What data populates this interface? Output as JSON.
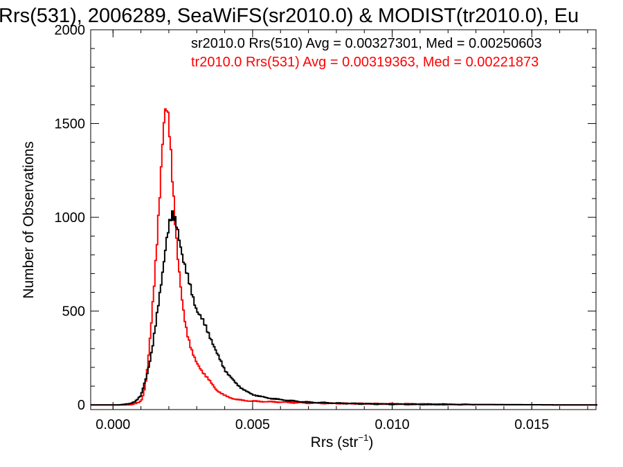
{
  "chart_data": {
    "type": "line",
    "title": "Rrs(531), 2006289, SeaWiFS(sr2010.0) & MODIST(tr2010.0), Eu",
    "xlabel": "Rrs (str",
    "xlabel_sup": "−1",
    "xlabel_close": ")",
    "ylabel": "Number of Observations",
    "xlim": [
      -0.0008,
      0.0173
    ],
    "ylim": [
      -25,
      2000
    ],
    "xticks": [
      0.0,
      0.005,
      0.01,
      0.015
    ],
    "xtick_labels": [
      "0.000",
      "0.005",
      "0.010",
      "0.015"
    ],
    "yticks": [
      0,
      500,
      1000,
      1500,
      2000
    ],
    "ytick_labels": [
      "0",
      "500",
      "1000",
      "1500",
      "2000"
    ],
    "grid": false,
    "legend_position": "top-right",
    "series": [
      {
        "name": "sr2010.0 Rrs(510) Avg = 0.00327301, Med = 0.00250603",
        "color": "#000000",
        "x": [
          0.0002,
          0.0006,
          0.0008,
          0.001,
          0.0011,
          0.0012,
          0.0013,
          0.0014,
          0.0015,
          0.0016,
          0.0017,
          0.0018,
          0.0019,
          0.002,
          0.0021,
          0.0022,
          0.0023,
          0.0024,
          0.0025,
          0.0026,
          0.0027,
          0.0028,
          0.0029,
          0.003,
          0.0031,
          0.0032,
          0.0033,
          0.0034,
          0.0035,
          0.0036,
          0.0037,
          0.0038,
          0.0039,
          0.004,
          0.0042,
          0.0044,
          0.0046,
          0.0048,
          0.005,
          0.0055,
          0.006,
          0.0065,
          0.007,
          0.008,
          0.009,
          0.01,
          0.011,
          0.012,
          0.013,
          0.014,
          0.015,
          0.016,
          0.0172
        ],
        "values": [
          0,
          5,
          20,
          50,
          100,
          150,
          220,
          300,
          400,
          500,
          610,
          740,
          880,
          960,
          1000,
          980,
          950,
          880,
          790,
          720,
          660,
          610,
          560,
          510,
          480,
          450,
          420,
          390,
          360,
          320,
          280,
          250,
          220,
          190,
          150,
          115,
          90,
          70,
          55,
          38,
          28,
          20,
          14,
          9,
          6,
          4,
          3,
          2,
          2,
          1,
          1,
          0,
          0
        ]
      },
      {
        "name": "tr2010.0 Rrs(531) Avg = 0.00319363, Med = 0.00221873",
        "color": "#ff0000",
        "x": [
          0.0002,
          0.0006,
          0.0008,
          0.001,
          0.0011,
          0.0012,
          0.0013,
          0.0014,
          0.0015,
          0.0016,
          0.0017,
          0.0018,
          0.0019,
          0.002,
          0.0021,
          0.0022,
          0.0023,
          0.0024,
          0.0025,
          0.0026,
          0.0027,
          0.0028,
          0.0029,
          0.003,
          0.0031,
          0.0032,
          0.0033,
          0.0034,
          0.0035,
          0.0036,
          0.0037,
          0.0038,
          0.0039,
          0.004,
          0.0042,
          0.0044,
          0.0046,
          0.0048,
          0.005,
          0.0055,
          0.006,
          0.0065,
          0.007,
          0.008,
          0.009,
          0.01,
          0.011,
          0.012,
          0.013,
          0.014,
          0.015,
          0.016,
          0.0172
        ],
        "values": [
          0,
          0,
          5,
          20,
          60,
          150,
          300,
          480,
          700,
          950,
          1200,
          1450,
          1570,
          1510,
          1300,
          1050,
          820,
          650,
          520,
          430,
          360,
          300,
          255,
          220,
          200,
          180,
          160,
          140,
          120,
          100,
          80,
          70,
          60,
          50,
          38,
          30,
          25,
          22,
          20,
          17,
          15,
          12,
          10,
          8,
          6,
          5,
          4,
          3,
          2,
          2,
          1,
          0,
          0
        ]
      }
    ]
  }
}
